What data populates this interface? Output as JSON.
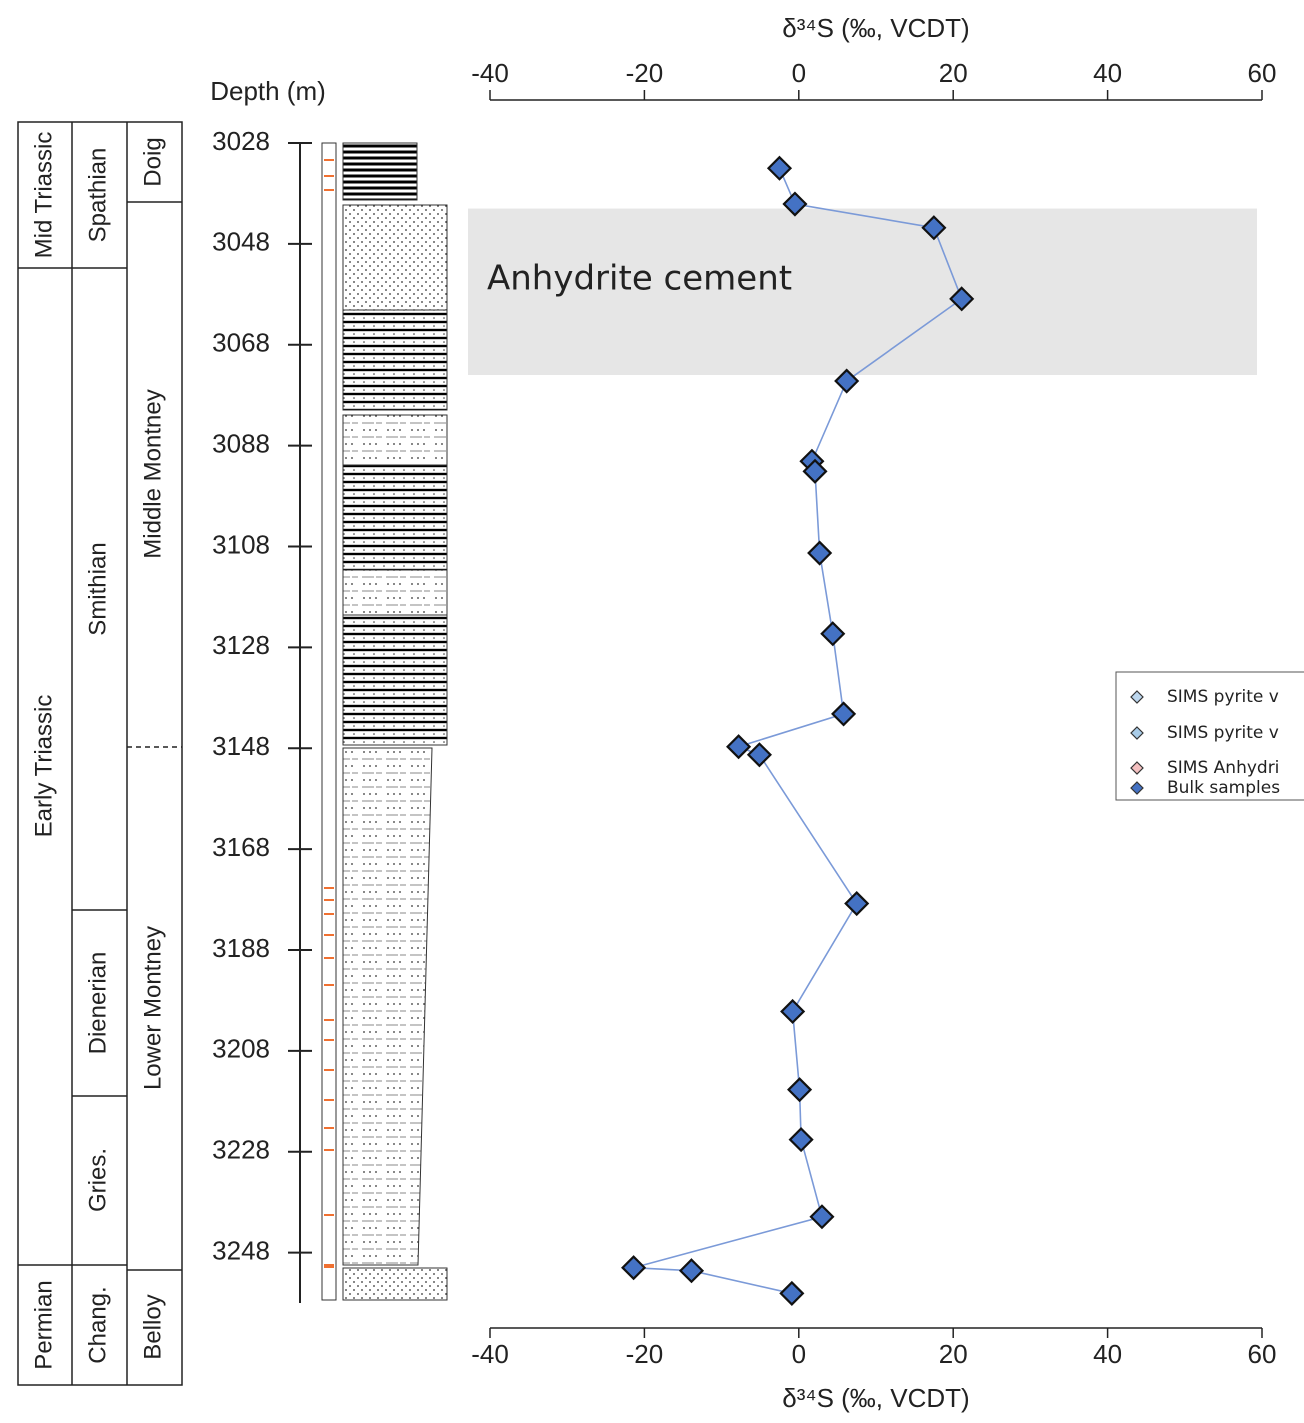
{
  "chart_data": {
    "type": "scatter",
    "x_label": "δ³⁴S (‰, VCDT)",
    "y_label": "Depth (m)",
    "xlim": [
      -40,
      60
    ],
    "xticks": [
      -40,
      -20,
      0,
      20,
      40,
      60
    ],
    "ylim": [
      3028,
      3258
    ],
    "yticks": [
      3028,
      3048,
      3068,
      3088,
      3108,
      3128,
      3148,
      3168,
      3188,
      3208,
      3228,
      3248
    ],
    "y_inverted": true,
    "connect_points": true,
    "highlight": {
      "label": "Anhydrite cement",
      "ylim": [
        3041,
        3074
      ],
      "color": "#e6e6e6"
    },
    "series": [
      {
        "name": "SIMS pyrite v",
        "color": "#bdd7ee",
        "x": [],
        "values": []
      },
      {
        "name": "SIMS pyrite v",
        "color": "#a9cce8",
        "x": [],
        "values": []
      },
      {
        "name": "SIMS Anhydri",
        "color": "#f4c0c0",
        "x": [],
        "values": []
      },
      {
        "name": "Bulk samples",
        "color": "#4472c4",
        "line_color": "#7b9ad8",
        "x": [
          -2.5,
          -0.5,
          17.5,
          21.1,
          6.2,
          1.7,
          2.1,
          2.7,
          4.4,
          5.8,
          -7.8,
          -5.1,
          7.5,
          -0.8,
          0.1,
          0.3,
          3.0,
          -21.4,
          -13.9,
          -0.9
        ],
        "values": [
          3033,
          3040.1,
          3044.8,
          3058.9,
          3075.2,
          3091.1,
          3093.1,
          3109.3,
          3125.3,
          3141.2,
          3147.7,
          3149.3,
          3178.8,
          3200.2,
          3215.7,
          3225.6,
          3240.9,
          3251.0,
          3251.6,
          3256.1
        ]
      }
    ],
    "stratigraphy": {
      "system": [
        "Mid Triassic",
        "Early Triassic",
        "Permian"
      ],
      "stage": [
        "Spathian",
        "Smithian",
        "Dienerian",
        "Gries.",
        "Chang."
      ],
      "formation": [
        "Doig",
        "Middle Montney",
        "Lower Montney",
        "Belloy"
      ]
    }
  }
}
